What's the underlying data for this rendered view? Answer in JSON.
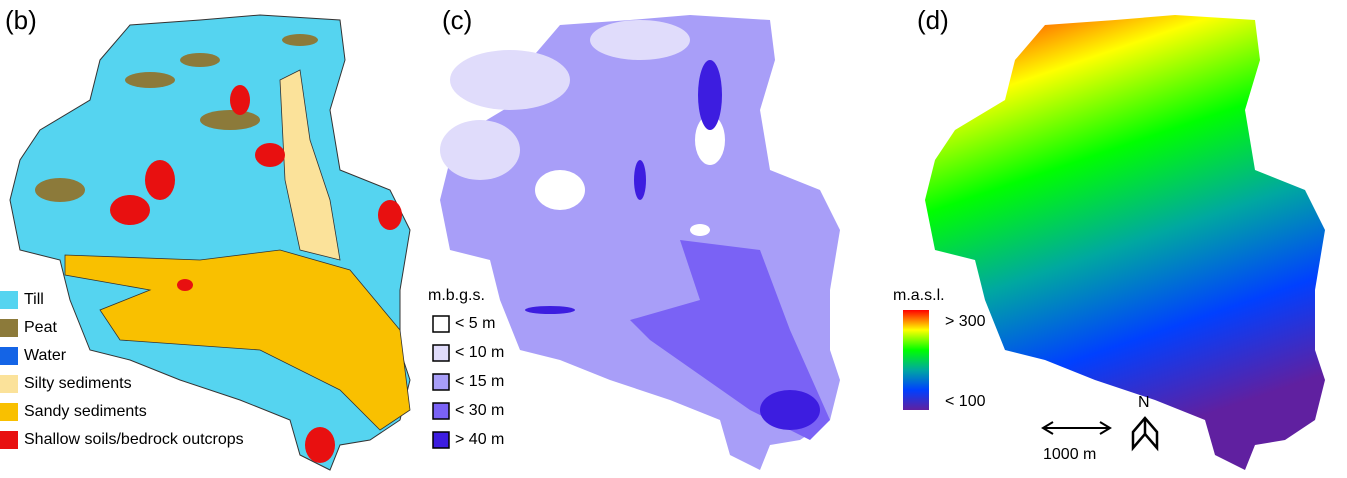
{
  "panels": [
    {
      "label": "(b)",
      "legend": {
        "items": [
          {
            "label": "Till",
            "color": "#55d4f0"
          },
          {
            "label": "Peat",
            "color": "#8c7a3a"
          },
          {
            "label": "Water",
            "color": "#1464e6"
          },
          {
            "label": "Silty sediments",
            "color": "#fbe29a"
          },
          {
            "label": "Sandy sediments",
            "color": "#f9c000"
          },
          {
            "label": "Shallow soils/bedrock outcrops",
            "color": "#e81010"
          }
        ]
      }
    },
    {
      "label": "(c)",
      "legend": {
        "title": "m.b.g.s.",
        "items": [
          {
            "label": "< 5 m",
            "color": "#ffffff"
          },
          {
            "label": "< 10 m",
            "color": "#e0dcfb"
          },
          {
            "label": "< 15 m",
            "color": "#a89ef8"
          },
          {
            "label": "< 30 m",
            "color": "#7a62f5"
          },
          {
            "label": "> 40 m",
            "color": "#3d1de0"
          }
        ]
      }
    },
    {
      "label": "(d)",
      "legend": {
        "title": "m.a.s.l.",
        "max_label": "> 300",
        "min_label": "< 100",
        "colormap": [
          "#ff0000",
          "#ffff00",
          "#00ff00",
          "#00a8a0",
          "#0040ff",
          "#6020a0"
        ]
      },
      "scale_bar": "1000 m",
      "north": "N"
    }
  ]
}
